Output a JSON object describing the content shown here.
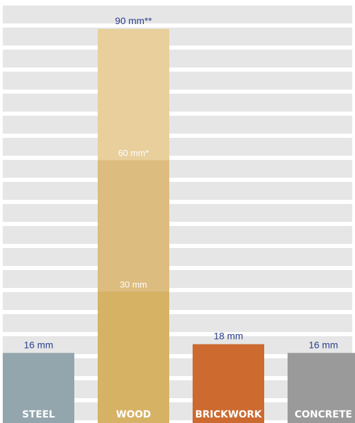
{
  "chart_data": {
    "type": "bar",
    "categories": [
      "STEEL",
      "WOOD",
      "BRICKWORK",
      "CONCRETE"
    ],
    "values": [
      16,
      90,
      18,
      16
    ],
    "value_labels": [
      "16 mm",
      "90 mm**",
      "18 mm",
      "16 mm"
    ],
    "wood_segments": [
      {
        "value": 30,
        "label": "30 mm",
        "color": "#d6b265"
      },
      {
        "value": 60,
        "label": "60 mm*",
        "color": "#dcbc7f"
      },
      {
        "value": 90,
        "label": "",
        "color": "#e8cf9b"
      }
    ],
    "ylim": [
      0,
      90
    ],
    "grid": true,
    "colors": {
      "STEEL": "#93a5ad",
      "BRICKWORK": "#cc6a30",
      "CONCRETE": "#9a9a9a",
      "background_band": "#e6e6e6",
      "label_text": "#2a3f8f"
    }
  }
}
